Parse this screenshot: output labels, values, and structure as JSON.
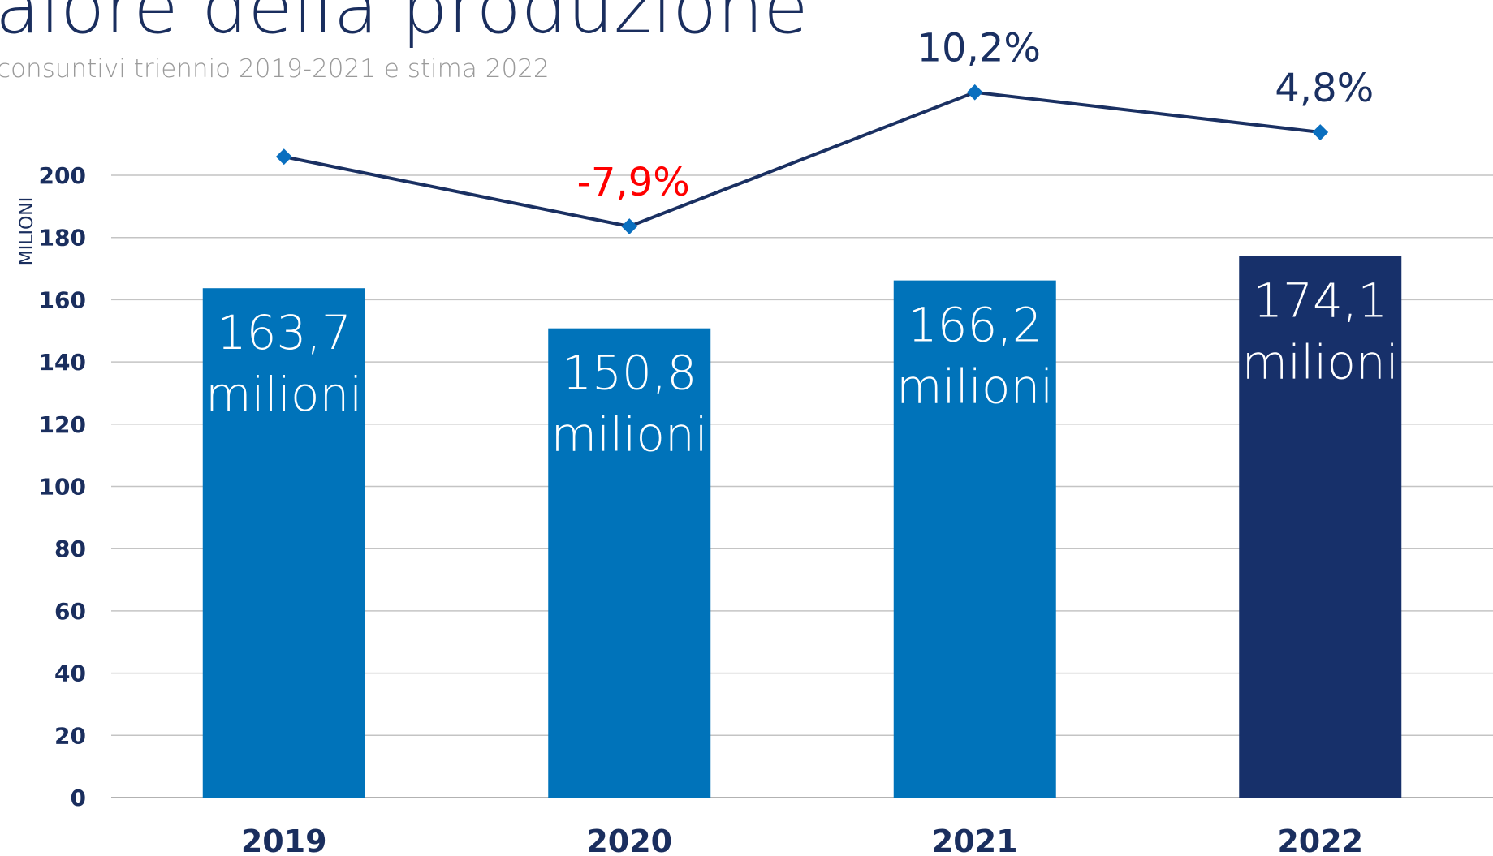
{
  "chart_data": {
    "type": "bar",
    "title": "alore della produzione",
    "subtitle": "consuntivi triennio 2019-2021 e stima 2022",
    "y_label": "MILIONI",
    "categories": [
      "2019",
      "2020",
      "2021",
      "2022"
    ],
    "series": [
      {
        "type": "bar",
        "colors": [
          "#0073ba",
          "#0073ba",
          "#0073ba",
          "#17306a"
        ],
        "values": [
          163.7,
          150.8,
          166.2,
          174.1
        ],
        "value_labels": [
          "163,7 milioni",
          "150,8 milioni",
          "166,2 milioni",
          "174,1 milioni"
        ]
      },
      {
        "type": "line",
        "axis": "y2",
        "color": "#1a3062",
        "marker_color": "#0a6fbf",
        "values": [
          1.5,
          -7.9,
          10.2,
          4.8
        ],
        "value_labels": [
          null,
          "-7,9%",
          "10,2%",
          "4,8%"
        ],
        "label_colors": [
          null,
          "#ff0000",
          "#1a3062",
          "#1a3062"
        ]
      }
    ],
    "ylim": [
      0,
      200
    ],
    "yticks": [
      0,
      20,
      40,
      60,
      80,
      100,
      120,
      140,
      160,
      180,
      200
    ],
    "y2lim": [
      -85,
      -1
    ],
    "grid": true
  }
}
